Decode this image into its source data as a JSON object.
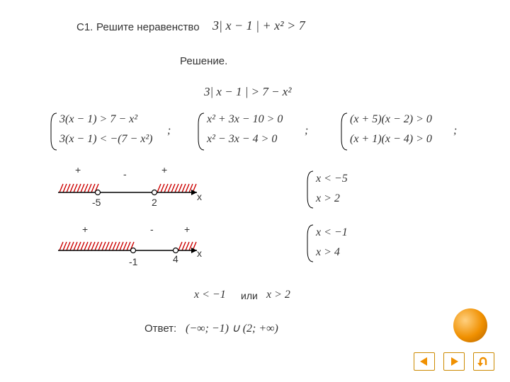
{
  "page": {
    "bg": "#ffffff",
    "text_color": "#333333"
  },
  "header": {
    "problem_id": "C1.",
    "task_label": "Решите неравенство",
    "formula": "3| x − 1 | + x² > 7",
    "solution_label": "Решение."
  },
  "steps": {
    "step1_formula": "3| x − 1 | > 7 − x²",
    "system1_line1": "3(x − 1) > 7 − x²",
    "system1_line2": "3(x − 1) < −(7 − x²)",
    "system2_line1": "x² + 3x − 10 > 0",
    "system2_line2": "x² − 3x − 4 > 0",
    "system3_line1": "(x + 5)(x − 2) > 0",
    "system3_line2": "(x + 1)(x − 4) > 0",
    "separator": ";"
  },
  "numberlines": {
    "hatch_color": "#cc0000",
    "axis_color": "#000000",
    "line1": {
      "signs": [
        "+",
        "-",
        "+"
      ],
      "points": [
        "-5",
        "2"
      ],
      "axis_label": "х"
    },
    "line2": {
      "signs": [
        "+",
        "-",
        "+"
      ],
      "points": [
        "-1",
        "4"
      ],
      "axis_label": "х"
    }
  },
  "right_systems": {
    "sys1_line1": "x < −5",
    "sys1_line2": "x > 2",
    "sys2_line1": "x < −1",
    "sys2_line2": "x > 4"
  },
  "final": {
    "part1": "x < −1",
    "or_label": "или",
    "part2": "x > 2",
    "answer_label": "Ответ:",
    "answer_formula": "(−∞; −1) ∪ (2; +∞)"
  },
  "decor": {
    "orb_color": "#f09000"
  },
  "nav": {
    "prev_color": "#f09000",
    "next_color": "#f09000",
    "back_color": "#f09000"
  }
}
